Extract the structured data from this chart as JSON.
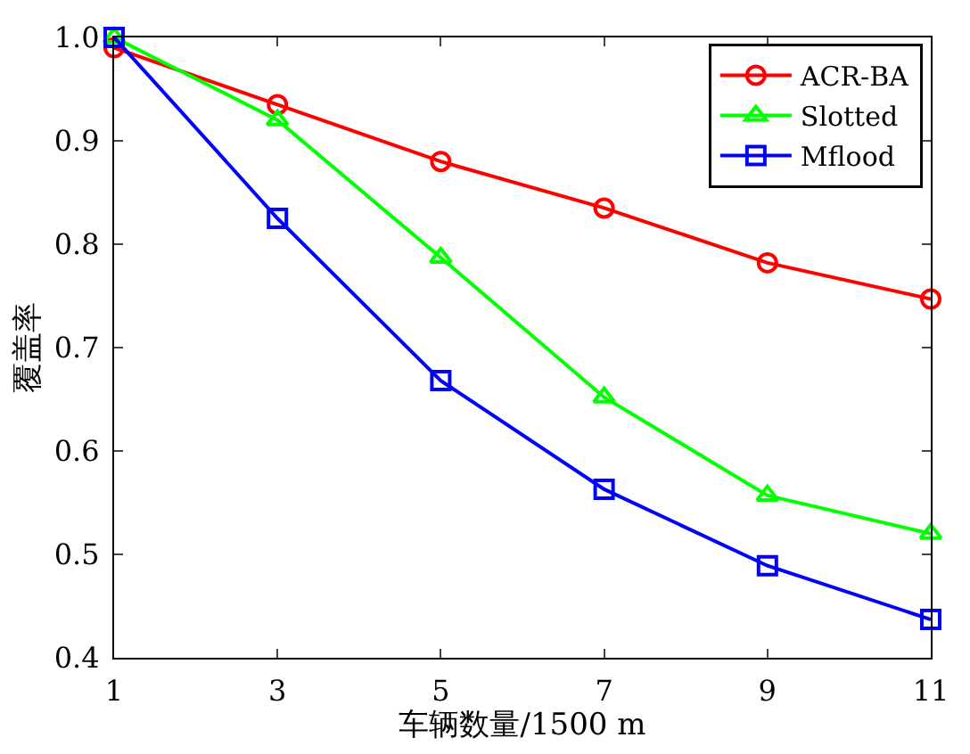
{
  "chart_data": {
    "type": "line",
    "xlabel": "车辆数量/1500 m",
    "ylabel": "覆盖率",
    "x": [
      1,
      3,
      5,
      7,
      9,
      11
    ],
    "series": [
      {
        "name": "ACR-BA",
        "color": "#ff0000",
        "marker": "circle",
        "values": [
          0.99,
          0.935,
          0.88,
          0.835,
          0.782,
          0.747
        ]
      },
      {
        "name": "Slotted",
        "color": "#00ff00",
        "marker": "triangle",
        "values": [
          1.0,
          0.92,
          0.787,
          0.652,
          0.557,
          0.52
        ]
      },
      {
        "name": "Mflood",
        "color": "#0000ff",
        "marker": "square",
        "values": [
          1.0,
          0.825,
          0.668,
          0.563,
          0.489,
          0.437
        ]
      }
    ],
    "xlim": [
      1,
      11
    ],
    "xticks": [
      1,
      3,
      5,
      7,
      9,
      11
    ],
    "ylim": [
      0.4,
      1.0
    ],
    "yticks": [
      {
        "value": 0.4,
        "label": "0.4"
      },
      {
        "value": 0.5,
        "label": "0.5"
      },
      {
        "value": 0.6,
        "label": "0.6"
      },
      {
        "value": 0.7,
        "label": "0.7"
      },
      {
        "value": 0.8,
        "label": "0.8"
      },
      {
        "value": 0.9,
        "label": "0.9"
      },
      {
        "value": 1.0,
        "label": "1.0"
      }
    ],
    "legend": "top right",
    "line_style": "solid"
  }
}
